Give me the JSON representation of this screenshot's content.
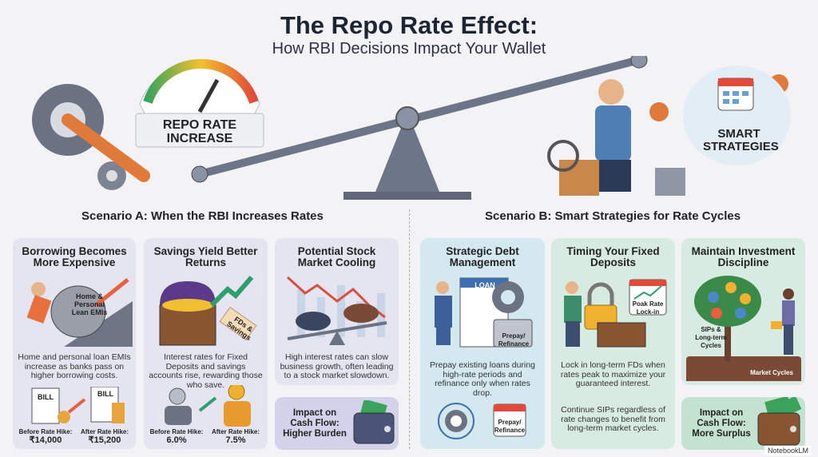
{
  "header": {
    "title": "The Repo Rate Effect:",
    "subtitle": "How RBI Decisions Impact Your Wallet"
  },
  "hero": {
    "gauge_label": "REPO RATE INCREASE",
    "strategies_label": "SMART STRATEGIES"
  },
  "scenario_a": {
    "heading": "Scenario A: When the RBI Increases Rates",
    "cards": [
      {
        "title": "Borrowing Becomes More Expensive",
        "illustration_label": "Home & Personal Lean EMIs",
        "description": "Home and personal loan EMIs increase as banks pass on higher borrowing costs.",
        "bill_label": "BILL",
        "before_label": "Before Rate Hike:",
        "before_value": "₹14,000",
        "after_label": "After Rate Hike:",
        "after_value": "₹15,200"
      },
      {
        "title": "Savings Yield Better Returns",
        "illustration_label": "FDs & Savings",
        "description": "Interest rates for Fixed Deposits and savings accounts rise, rewarding those who save.",
        "before_label": "Before Rate Hike:",
        "before_value": "6.0%",
        "after_label": "After Rate Hike:",
        "after_value": "7.5%"
      },
      {
        "title": "Potential Stock Market Cooling",
        "description": "High interest rates can slow business growth, often leading to a stock market slowdown."
      }
    ],
    "impact": "Impact on Cash Flow: Higher Burden"
  },
  "scenario_b": {
    "heading": "Scenario B: Smart Strategies for Rate Cycles",
    "cards": [
      {
        "title": "Strategic Debt Management",
        "loan_label": "LOAN",
        "illustration_label": "Prepay/ Refinance",
        "description": "Prepay existing loans during high-rate periods and refinance only when rates drop.",
        "calendar_label": "Prepay/ Refinance"
      },
      {
        "title": "Timing Your Fixed Deposits",
        "illustration_label": "Poak Rate Lock-in",
        "description": "Lock in long-term FDs when rates peak to maximize your guaranteed interest.",
        "description2": "Continue SIPs regardless of rate changes to benefit from long-term market cycles."
      },
      {
        "title": "Maintain Investment Discipline",
        "tree_label": "SIPs & Long-term Cycles",
        "soil_label": "Market Cycles"
      }
    ],
    "impact": "Impact on Cash Flow: More Surplus"
  },
  "footer": {
    "brand": "NotebookLM"
  },
  "colors": {
    "a_card": "#e4e5f1",
    "b_card_blue": "#d4e8f0",
    "b_card_green": "#d8ebe2",
    "arrow_up_red": "#e8603c",
    "arrow_up_green": "#2e9e6e"
  }
}
